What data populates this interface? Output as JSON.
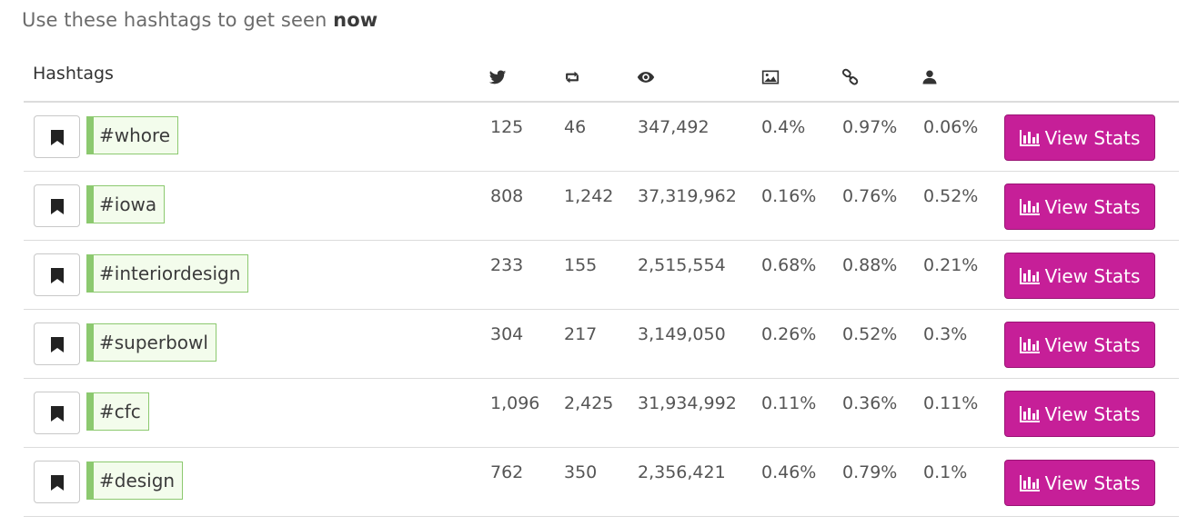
{
  "intro": {
    "text": "Use these hashtags to get seen",
    "emphasis": "now"
  },
  "table": {
    "header": {
      "hashtags_label": "Hashtags",
      "icons": [
        "twitter-bird-icon",
        "retweet-icon",
        "eye-icon",
        "image-icon",
        "link-icon",
        "user-icon"
      ]
    },
    "rows": [
      {
        "tag": "#whore",
        "tweets": "125",
        "retweets": "46",
        "exposure": "347,492",
        "images": "0.4%",
        "links": "0.97%",
        "mentions": "0.06%",
        "button": "View Stats"
      },
      {
        "tag": "#iowa",
        "tweets": "808",
        "retweets": "1,242",
        "exposure": "37,319,962",
        "images": "0.16%",
        "links": "0.76%",
        "mentions": "0.52%",
        "button": "View Stats"
      },
      {
        "tag": "#interiordesign",
        "tweets": "233",
        "retweets": "155",
        "exposure": "2,515,554",
        "images": "0.68%",
        "links": "0.88%",
        "mentions": "0.21%",
        "button": "View Stats"
      },
      {
        "tag": "#superbowl",
        "tweets": "304",
        "retweets": "217",
        "exposure": "3,149,050",
        "images": "0.26%",
        "links": "0.52%",
        "mentions": "0.3%",
        "button": "View Stats"
      },
      {
        "tag": "#cfc",
        "tweets": "1,096",
        "retweets": "2,425",
        "exposure": "31,934,992",
        "images": "0.11%",
        "links": "0.36%",
        "mentions": "0.11%",
        "button": "View Stats"
      },
      {
        "tag": "#design",
        "tweets": "762",
        "retweets": "350",
        "exposure": "2,356,421",
        "images": "0.46%",
        "links": "0.79%",
        "mentions": "0.1%",
        "button": "View Stats"
      }
    ]
  },
  "colors": {
    "button_bg": "#c61f98",
    "tag_border": "#8cc96f",
    "tag_bg": "#f3fcec",
    "divider": "#dcdcdc"
  }
}
